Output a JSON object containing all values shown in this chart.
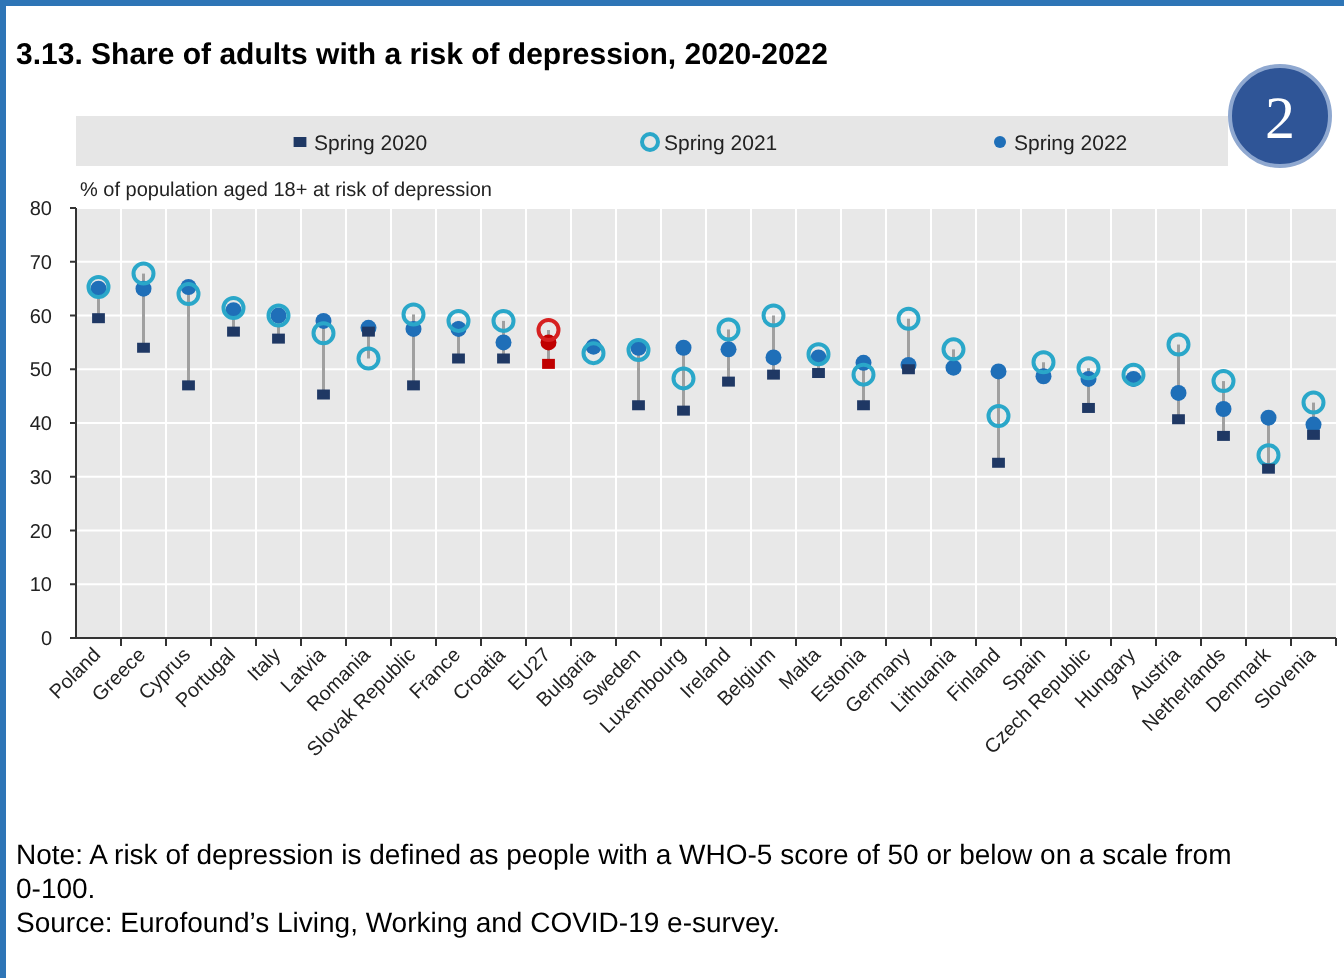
{
  "chart_data": {
    "type": "scatter",
    "title": "3.13. Share of adults with a risk of depression, 2020-2022",
    "ylabel": "% of population aged 18+ at risk of depression",
    "categories": [
      "Poland",
      "Greece",
      "Cyprus",
      "Portugal",
      "Italy",
      "Latvia",
      "Romania",
      "Slovak Republic",
      "France",
      "Croatia",
      "EU27",
      "Bulgaria",
      "Sweden",
      "Luxembourg",
      "Ireland",
      "Belgium",
      "Malta",
      "Estonia",
      "Germany",
      "Lithuania",
      "Finland",
      "Spain",
      "Czech Republic",
      "Hungary",
      "Austria",
      "Netherlands",
      "Denmark",
      "Slovenia"
    ],
    "series": [
      {
        "name": "Spring 2020",
        "marker": "square",
        "color": "#1f3864",
        "colors": [
          "#1f3864",
          "#1f3864",
          "#1f3864",
          "#1f3864",
          "#1f3864",
          "#1f3864",
          "#1f3864",
          "#1f3864",
          "#1f3864",
          "#1f3864",
          "#c00000",
          null,
          "#1f3864",
          "#1f3864",
          "#1f3864",
          "#1f3864",
          "#1f3864",
          "#1f3864",
          "#1f3864",
          null,
          "#1f3864",
          null,
          "#1f3864",
          null,
          "#1f3864",
          "#1f3864",
          "#1f3864",
          "#1f3864"
        ],
        "values": [
          59.5,
          54,
          47,
          57,
          55.7,
          45.3,
          57,
          47,
          52,
          52,
          51,
          null,
          43.3,
          42.3,
          47.7,
          49,
          49.3,
          43.3,
          50,
          null,
          32.6,
          null,
          42.8,
          null,
          40.7,
          37.6,
          31.5,
          37.8
        ]
      },
      {
        "name": "Spring 2021",
        "marker": "circle",
        "color": "#2aa7c9",
        "colors": [
          "#2aa7c9",
          "#2aa7c9",
          "#2aa7c9",
          "#2aa7c9",
          "#2aa7c9",
          "#2aa7c9",
          "#2aa7c9",
          "#2aa7c9",
          "#2aa7c9",
          "#2aa7c9",
          "#d62020",
          "#2aa7c9",
          "#2aa7c9",
          "#2aa7c9",
          "#2aa7c9",
          "#2aa7c9",
          "#2aa7c9",
          "#2aa7c9",
          "#2aa7c9",
          "#2aa7c9",
          "#2aa7c9",
          "#2aa7c9",
          "#2aa7c9",
          "#2aa7c9",
          "#2aa7c9",
          "#2aa7c9",
          "#2aa7c9",
          "#2aa7c9"
        ],
        "values": [
          65.3,
          67.8,
          64,
          61.4,
          60,
          56.7,
          52,
          60.2,
          59,
          59,
          57.3,
          53,
          53.6,
          48.3,
          57.4,
          60,
          52.8,
          49,
          59.4,
          53.7,
          41.3,
          51.3,
          50.2,
          49,
          54.6,
          47.8,
          34,
          43.8
        ]
      },
      {
        "name": "Spring 2022",
        "marker": "circle",
        "color": "#1f6fb8",
        "colors": [
          "#1f6fb8",
          "#1f6fb8",
          "#1f6fb8",
          "#1f6fb8",
          "#1f6fb8",
          "#1f6fb8",
          "#1f6fb8",
          "#1f6fb8",
          "#1f6fb8",
          "#1f6fb8",
          "#c00000",
          "#1f6fb8",
          "#1f6fb8",
          "#1f6fb8",
          "#1f6fb8",
          "#1f6fb8",
          "#1f6fb8",
          "#1f6fb8",
          "#1f6fb8",
          "#1f6fb8",
          "#1f6fb8",
          "#1f6fb8",
          "#1f6fb8",
          "#1f6fb8",
          "#1f6fb8",
          "#1f6fb8",
          "#1f6fb8",
          "#1f6fb8"
        ],
        "values": [
          65,
          65,
          65.3,
          61,
          60,
          59,
          57.7,
          57.5,
          57.5,
          55,
          55,
          54.2,
          54,
          54,
          53.7,
          52.2,
          52.2,
          51.2,
          50.8,
          50.3,
          49.6,
          48.7,
          48.2,
          48.2,
          45.6,
          42.6,
          41,
          39.7
        ]
      }
    ],
    "ylim": [
      0,
      80
    ],
    "yticks": [
      0,
      10,
      20,
      30,
      40,
      50,
      60,
      70,
      80
    ],
    "grid": true,
    "legend": "top",
    "annotations": [
      "2",
      "Note: A risk of depression is defined as people with a WHO-5 score of 50 or below on a scale from 0-100.",
      "Source: Eurofound’s Living, Working and COVID-19 e-survey."
    ]
  }
}
